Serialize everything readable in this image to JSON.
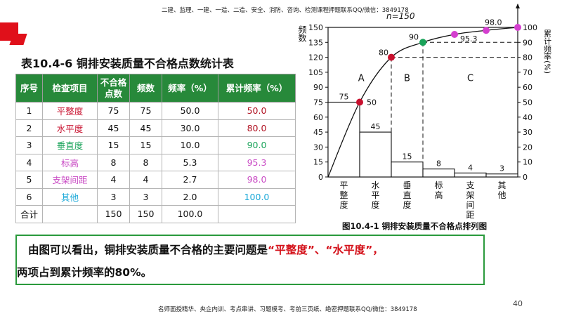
{
  "header_text": "二建、监理、一建、一造、二造、安全、消防、咨询、检测课程押题联系QQ/微信：3849178",
  "footer_text": "名师面授精华、央企内训、考点串讲、习题模考、考前三页纸、绝密押题联系QQ/微信：3849178",
  "page_number": "40",
  "table": {
    "title": "表10.4-6 铜排安装质量不合格点数统计表",
    "headers": [
      "序号",
      "检查项目",
      "不合格\n点数",
      "频数",
      "频率（%）",
      "累计频率（%）"
    ],
    "rows": [
      {
        "no": "1",
        "item": "平整度",
        "points": "75",
        "freq": "75",
        "rate": "50.0",
        "cum": "50.0"
      },
      {
        "no": "2",
        "item": "水平度",
        "points": "45",
        "freq": "45",
        "rate": "30.0",
        "cum": "80.0"
      },
      {
        "no": "3",
        "item": "垂直度",
        "points": "15",
        "freq": "15",
        "rate": "10.0",
        "cum": "90.0"
      },
      {
        "no": "4",
        "item": "标高",
        "points": "8",
        "freq": "8",
        "rate": "5.3",
        "cum": "95.3"
      },
      {
        "no": "5",
        "item": "支架间距",
        "points": "4",
        "freq": "4",
        "rate": "2.7",
        "cum": "98.0"
      },
      {
        "no": "6",
        "item": "其他",
        "points": "3",
        "freq": "3",
        "rate": "2.0",
        "cum": "100.0"
      }
    ],
    "total": {
      "label": "合计",
      "points": "150",
      "freq": "150",
      "rate": "100.0"
    }
  },
  "conclusion": {
    "line1_prefix": "由图可以看出，铜排安装质量不合格的主要问题是",
    "highlight": "“平整度”、“水平度”，",
    "line2": "两项占到累计频率的80%。"
  },
  "colors": {
    "header_green": "#27893a",
    "accent_red": "#d4121b",
    "point_red": "#c8102e",
    "point_green": "#1aa35a",
    "point_magenta": "#d43fcf"
  },
  "chart_data": {
    "type": "bar",
    "caption": "图10.4-1 铜排安装质量不合格点排列图",
    "n_label": "n=150",
    "ylabel_left": "频数",
    "ylabel_right": "累计频率(%)",
    "categories": [
      "平\n整\n度",
      "水\n平\n度",
      "垂\n直\n度",
      "标\n高",
      "支\n架\n间\n距",
      "其\n他"
    ],
    "values": [
      75,
      45,
      15,
      8,
      4,
      3
    ],
    "cumulative": [
      50,
      80,
      90,
      95.3,
      98.0,
      100
    ],
    "cumulative_labels": [
      "50",
      "80",
      "90",
      "95.3",
      "98.0",
      ""
    ],
    "value_labels": [
      "75",
      "45",
      "15",
      "8",
      "4",
      "3"
    ],
    "ylim_left": [
      0,
      150
    ],
    "ylim_right": [
      0,
      100
    ],
    "yticks_left": [
      "0",
      "15",
      "30",
      "45",
      "60",
      "75",
      "90",
      "105",
      "120",
      "135",
      "150"
    ],
    "yticks_right": [
      "0",
      "10",
      "20",
      "30",
      "40",
      "50",
      "60",
      "70",
      "80",
      "90",
      "100"
    ],
    "zones": [
      "A",
      "B",
      "C"
    ],
    "point_colors": [
      "#c8102e",
      "#c8102e",
      "#1aa35a",
      "#d43fcf",
      "#d43fcf",
      "#d43fcf"
    ]
  }
}
